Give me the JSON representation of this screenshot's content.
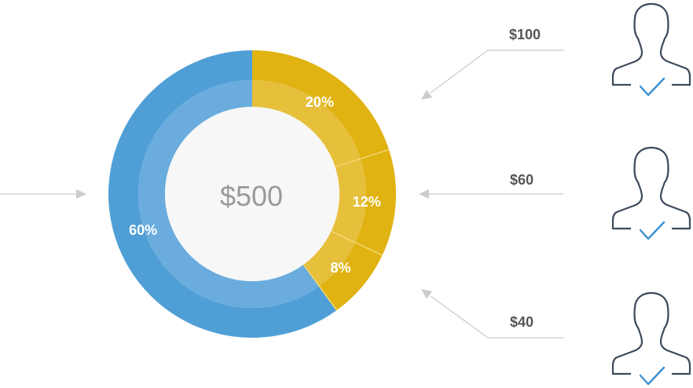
{
  "chart_data": {
    "type": "pie",
    "total_label": "$500",
    "slices": [
      {
        "label": "20%",
        "value": 20,
        "color": "#e0b312",
        "amount": "$100"
      },
      {
        "label": "12%",
        "value": 12,
        "color": "#e0b312",
        "amount": "$60"
      },
      {
        "label": "8%",
        "value": 8,
        "color": "#e0b312",
        "amount": "$40"
      },
      {
        "label": "60%",
        "value": 60,
        "color": "#4f9fd6"
      }
    ],
    "colors": {
      "blue_outer": "#4f9fd6",
      "blue_inner": "#6aacdd",
      "yellow_outer": "#e0b312",
      "yellow_inner": "#e6bf3b",
      "center_fill": "#f7f7f7",
      "arrow": "#cccccc",
      "person_stroke": "#3c4a5c",
      "check": "#3a8fd0"
    },
    "icons": [
      "person-icon",
      "checkmark-icon",
      "arrow-icon"
    ]
  }
}
